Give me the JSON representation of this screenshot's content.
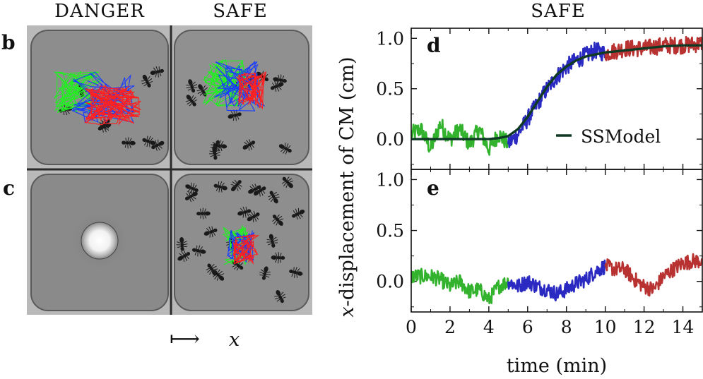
{
  "figure": {
    "col_titles": {
      "danger": "DANGER",
      "safe_left": "SAFE",
      "safe_right": "SAFE"
    },
    "panel_labels": {
      "b": "b",
      "c": "c",
      "d": "d",
      "e": "e"
    },
    "x_arrow": {
      "glyph": "⟼",
      "var": "x"
    }
  },
  "colors": {
    "phase1": "#33b22e",
    "phase2": "#2a2ac2",
    "phase3": "#b83232",
    "model": "#0e3a24",
    "track_green": "#22ee22",
    "track_blue": "#1a3cff",
    "track_red": "#ff2020",
    "arena_bg": "#8a8a8a"
  },
  "chart_data": {
    "type": "line",
    "title": "SAFE",
    "xlabel": "time (min)",
    "ylabel_prefix": "x",
    "ylabel_rest": "-displacement of CM (cm)",
    "xlim": [
      0,
      15
    ],
    "ylim": [
      -0.3,
      1.1
    ],
    "xticks": [
      "0",
      "2",
      "4",
      "6",
      "8",
      "10",
      "12",
      "14"
    ],
    "yticks": [
      "0.0",
      "0.5",
      "1.0"
    ],
    "legend": {
      "label": "SSModel",
      "position": "lower-right"
    },
    "panels": [
      {
        "label": "d",
        "model": {
          "name": "SSModel",
          "x": [
            0,
            1,
            2,
            3,
            4,
            4.5,
            5,
            5.5,
            6,
            6.5,
            7,
            7.5,
            8,
            8.5,
            9,
            9.5,
            10,
            10.5,
            11,
            12,
            13,
            14,
            15
          ],
          "y": [
            0,
            0,
            0,
            0,
            0,
            0.01,
            0.03,
            0.1,
            0.22,
            0.37,
            0.52,
            0.64,
            0.72,
            0.78,
            0.82,
            0.84,
            0.86,
            0.87,
            0.88,
            0.9,
            0.92,
            0.93,
            0.93
          ]
        },
        "phase_anchors": [
          {
            "x": [
              0,
              0.5,
              1,
              1.5,
              2,
              2.5,
              3,
              3.5,
              4,
              4.5,
              5
            ],
            "y": [
              0.05,
              0.1,
              -0.1,
              0.15,
              0,
              0.1,
              -0.05,
              0.1,
              -0.1,
              0.05,
              -0.05
            ]
          },
          {
            "x": [
              5,
              5.5,
              6,
              6.5,
              7,
              7.5,
              8,
              8.5,
              9,
              9.5,
              10
            ],
            "y": [
              -0.05,
              0.05,
              0.2,
              0.35,
              0.5,
              0.62,
              0.72,
              0.78,
              0.83,
              0.88,
              0.85
            ]
          },
          {
            "x": [
              10,
              11,
              12,
              13,
              14,
              15
            ],
            "y": [
              0.85,
              0.9,
              0.9,
              0.93,
              0.93,
              0.95
            ]
          }
        ],
        "noise": 0.085
      },
      {
        "label": "e",
        "phase_anchors": [
          {
            "x": [
              0,
              0.5,
              1,
              1.5,
              2,
              2.5,
              3,
              3.5,
              4,
              4.5,
              5
            ],
            "y": [
              0.05,
              0.05,
              0.05,
              0.02,
              -0.05,
              0,
              -0.1,
              -0.08,
              -0.18,
              -0.05,
              0
            ]
          },
          {
            "x": [
              5,
              5.5,
              6,
              6.5,
              7,
              7.5,
              8,
              8.5,
              9,
              9.5,
              10
            ],
            "y": [
              0,
              -0.05,
              0,
              -0.05,
              -0.08,
              -0.12,
              -0.08,
              -0.02,
              0.02,
              0.1,
              0.15
            ]
          },
          {
            "x": [
              10,
              10.5,
              11,
              11.5,
              12,
              12.5,
              13,
              13.5,
              14,
              14.5,
              15
            ],
            "y": [
              0.15,
              0.12,
              0.12,
              0.02,
              -0.05,
              -0.08,
              0.05,
              0.12,
              0.18,
              0.2,
              0.2
            ]
          }
        ],
        "noise": 0.075
      }
    ]
  }
}
